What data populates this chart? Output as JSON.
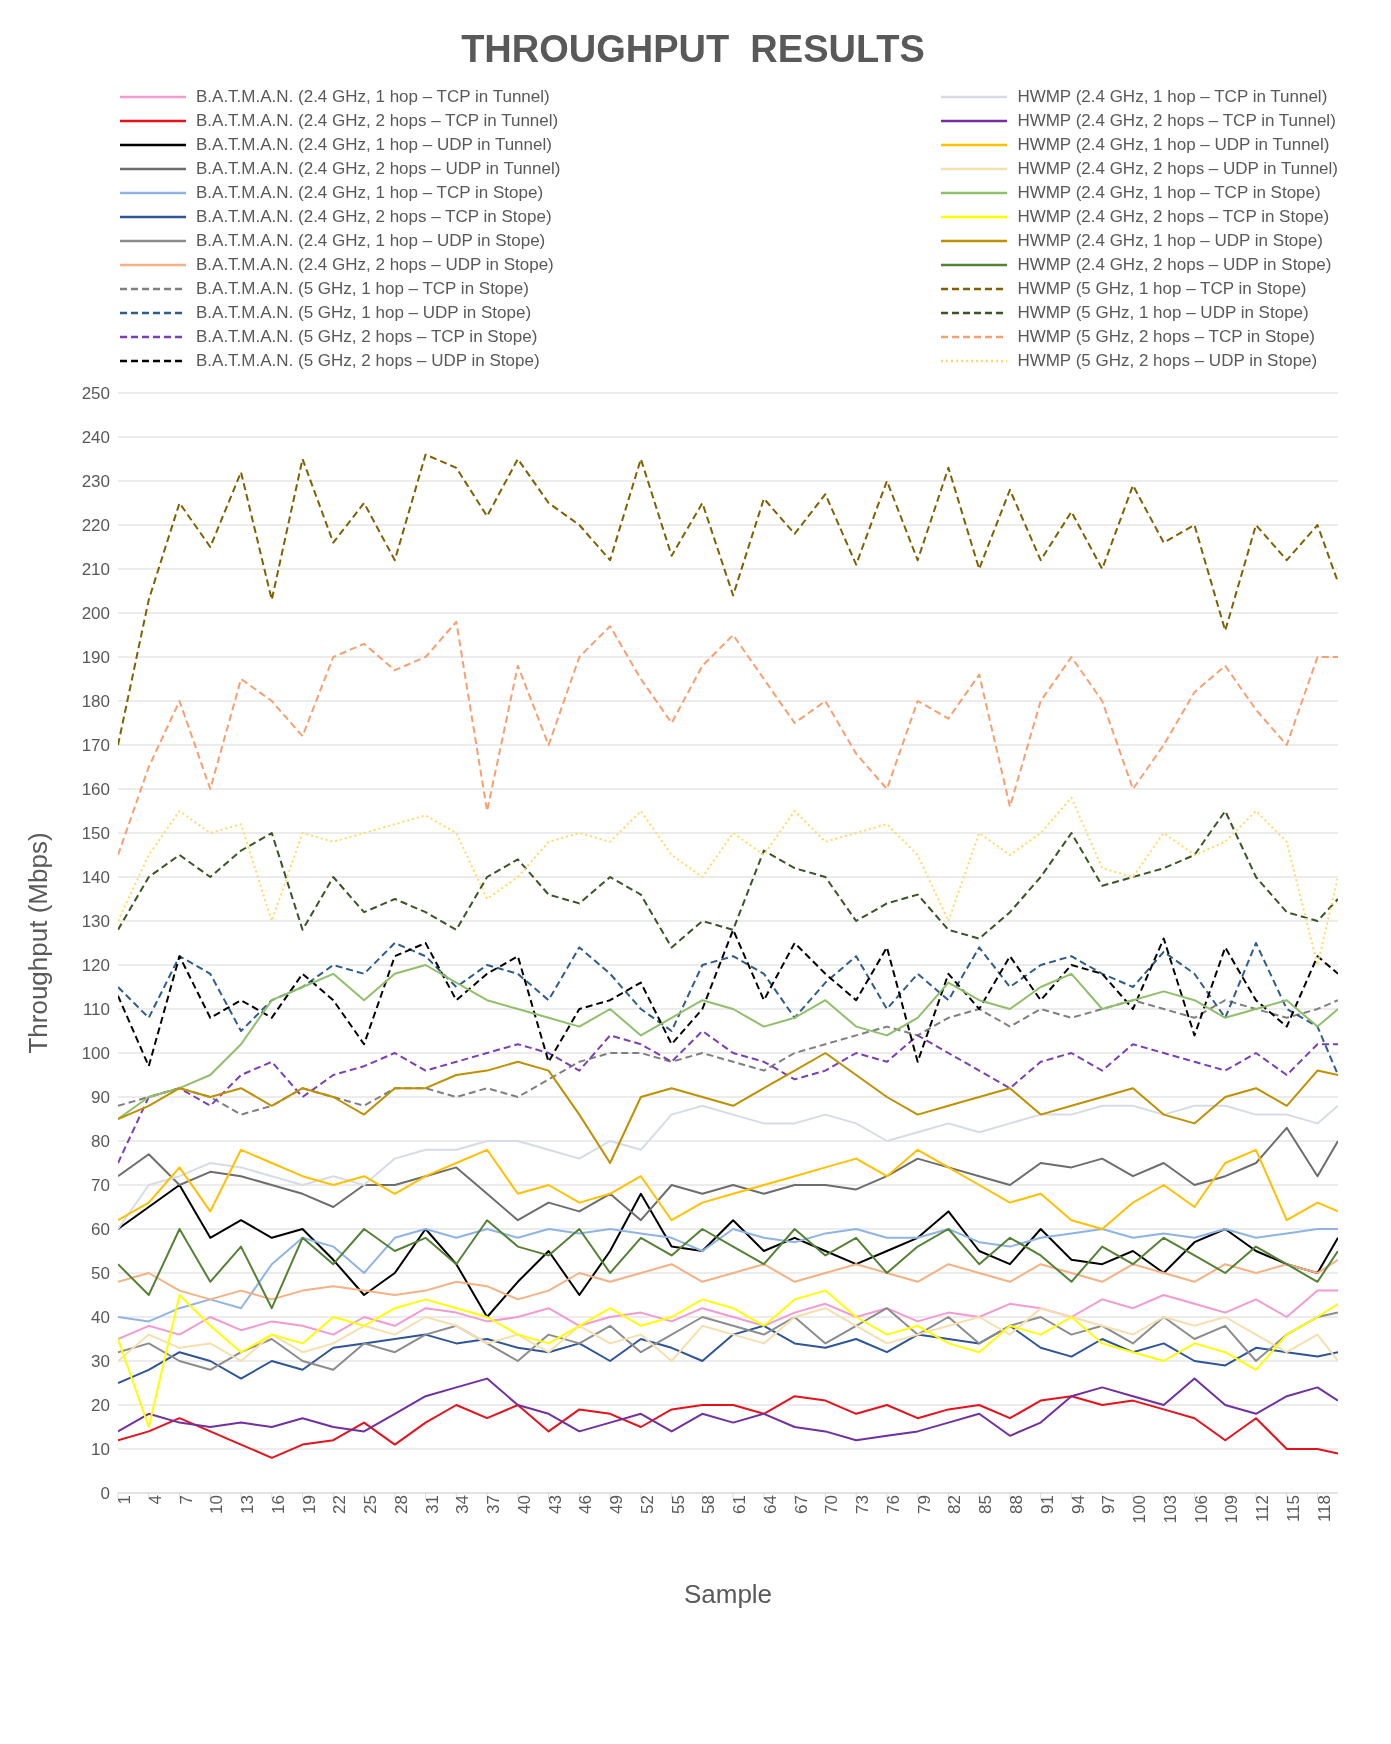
{
  "chart_data": {
    "type": "line",
    "title": "THROUGHPUT  RESULTS",
    "xlabel": "Sample",
    "ylabel": "Throughput (Mbps)",
    "xlim": [
      1,
      120
    ],
    "xticks": [
      1,
      4,
      7,
      10,
      13,
      16,
      19,
      22,
      25,
      28,
      31,
      34,
      37,
      40,
      43,
      46,
      49,
      52,
      55,
      58,
      61,
      64,
      67,
      70,
      73,
      76,
      79,
      82,
      85,
      88,
      91,
      94,
      97,
      100,
      103,
      106,
      109,
      112,
      115,
      118
    ],
    "ylim": [
      0,
      250
    ],
    "yticks": [
      0,
      10,
      20,
      30,
      40,
      50,
      60,
      70,
      80,
      90,
      100,
      110,
      120,
      130,
      140,
      150,
      160,
      170,
      180,
      190,
      200,
      210,
      220,
      230,
      240,
      250
    ],
    "grid": "y",
    "legend": "top",
    "marker": "none",
    "x": [
      1,
      4,
      7,
      10,
      13,
      16,
      19,
      22,
      25,
      28,
      31,
      34,
      37,
      40,
      43,
      46,
      49,
      52,
      55,
      58,
      61,
      64,
      67,
      70,
      73,
      76,
      79,
      82,
      85,
      88,
      91,
      94,
      97,
      100,
      103,
      106,
      109,
      112,
      115,
      118,
      120
    ],
    "series": [
      {
        "name": "B.A.T.M.A.N. (2.4 GHz, 1 hop – TCP in Tunnel)",
        "color": "#f29bd2",
        "line_style": "solid",
        "values": [
          35,
          38,
          36,
          40,
          37,
          39,
          38,
          36,
          40,
          38,
          42,
          41,
          39,
          40,
          42,
          38,
          40,
          41,
          39,
          42,
          40,
          38,
          41,
          43,
          40,
          42,
          39,
          41,
          40,
          43,
          42,
          40,
          44,
          42,
          45,
          43,
          41,
          44,
          40,
          46,
          46
        ]
      },
      {
        "name": "B.A.T.M.A.N. (2.4 GHz, 2 hops – TCP in Tunnel)",
        "color": "#e8111a",
        "line_style": "solid",
        "values": [
          12,
          14,
          17,
          14,
          11,
          8,
          11,
          12,
          16,
          11,
          16,
          20,
          17,
          20,
          14,
          19,
          18,
          15,
          19,
          20,
          20,
          18,
          22,
          21,
          18,
          20,
          17,
          19,
          20,
          17,
          21,
          22,
          20,
          21,
          19,
          17,
          12,
          17,
          10,
          10,
          9
        ]
      },
      {
        "name": "B.A.T.M.A.N. (2.4 GHz, 1 hop – UDP in Tunnel)",
        "color": "#000000",
        "line_style": "solid",
        "values": [
          60,
          65,
          70,
          58,
          62,
          58,
          60,
          53,
          45,
          50,
          60,
          52,
          40,
          48,
          55,
          45,
          55,
          68,
          56,
          55,
          62,
          55,
          58,
          55,
          52,
          55,
          58,
          64,
          55,
          52,
          60,
          53,
          52,
          55,
          50,
          57,
          60,
          55,
          52,
          50,
          58
        ]
      },
      {
        "name": "B.A.T.M.A.N. (2.4 GHz, 2 hops – UDP in Tunnel)",
        "color": "#6d6d6d",
        "line_style": "solid",
        "values": [
          72,
          77,
          70,
          73,
          72,
          70,
          68,
          65,
          70,
          70,
          72,
          74,
          68,
          62,
          66,
          64,
          68,
          62,
          70,
          68,
          70,
          68,
          70,
          70,
          69,
          72,
          76,
          74,
          72,
          70,
          75,
          74,
          76,
          72,
          75,
          70,
          72,
          75,
          83,
          72,
          80
        ]
      },
      {
        "name": "B.A.T.M.A.N. (2.4 GHz, 1 hop – TCP in Stope)",
        "color": "#8fb4e3",
        "line_style": "solid",
        "values": [
          40,
          39,
          42,
          44,
          42,
          52,
          58,
          56,
          50,
          58,
          60,
          58,
          60,
          58,
          60,
          59,
          60,
          59,
          58,
          55,
          60,
          58,
          57,
          59,
          60,
          58,
          58,
          60,
          57,
          56,
          58,
          59,
          60,
          58,
          59,
          58,
          60,
          58,
          59,
          60,
          60
        ]
      },
      {
        "name": "B.A.T.M.A.N. (2.4 GHz, 2 hops – TCP in Stope)",
        "color": "#2e5597",
        "line_style": "solid",
        "values": [
          25,
          28,
          32,
          30,
          26,
          30,
          28,
          33,
          34,
          35,
          36,
          34,
          35,
          33,
          32,
          34,
          30,
          35,
          33,
          30,
          36,
          38,
          34,
          33,
          35,
          32,
          36,
          35,
          34,
          38,
          33,
          31,
          35,
          32,
          34,
          30,
          29,
          33,
          32,
          31,
          32
        ]
      },
      {
        "name": "B.A.T.M.A.N. (2.4 GHz, 1 hop – UDP in Stope)",
        "color": "#8c8c8c",
        "line_style": "solid",
        "values": [
          32,
          34,
          30,
          28,
          32,
          35,
          30,
          28,
          34,
          32,
          36,
          38,
          34,
          30,
          36,
          34,
          38,
          32,
          36,
          40,
          38,
          36,
          40,
          34,
          38,
          42,
          36,
          40,
          34,
          38,
          40,
          36,
          38,
          34,
          40,
          35,
          38,
          30,
          36,
          40,
          41
        ]
      },
      {
        "name": "B.A.T.M.A.N. (2.4 GHz, 2 hops – UDP in Stope)",
        "color": "#f4b183",
        "line_style": "solid",
        "values": [
          48,
          50,
          46,
          44,
          46,
          44,
          46,
          47,
          46,
          45,
          46,
          48,
          47,
          44,
          46,
          50,
          48,
          50,
          52,
          48,
          50,
          52,
          48,
          50,
          52,
          50,
          48,
          52,
          50,
          48,
          52,
          50,
          48,
          52,
          50,
          48,
          52,
          50,
          52,
          50,
          53
        ]
      },
      {
        "name": "B.A.T.M.A.N. (5 GHz, 1 hop – TCP in Stope)",
        "color": "#7f7f7f",
        "line_style": "dashed",
        "values": [
          88,
          90,
          92,
          90,
          86,
          88,
          92,
          90,
          88,
          92,
          92,
          90,
          92,
          90,
          94,
          98,
          100,
          100,
          98,
          100,
          98,
          96,
          100,
          102,
          104,
          106,
          104,
          108,
          110,
          106,
          110,
          108,
          110,
          112,
          110,
          108,
          112,
          110,
          108,
          110,
          112
        ]
      },
      {
        "name": "B.A.T.M.A.N. (5 GHz, 1 hop – UDP in Stope)",
        "color": "#2f5c8a",
        "line_style": "dashed",
        "values": [
          115,
          108,
          122,
          118,
          105,
          112,
          115,
          120,
          118,
          125,
          122,
          115,
          120,
          118,
          112,
          124,
          118,
          110,
          105,
          120,
          122,
          118,
          108,
          116,
          122,
          110,
          118,
          112,
          124,
          115,
          120,
          122,
          118,
          115,
          123,
          118,
          108,
          125,
          110,
          106,
          95
        ]
      },
      {
        "name": "B.A.T.M.A.N. (5 GHz, 2 hops – TCP in Stope)",
        "color": "#7b3fb5",
        "line_style": "dashed",
        "values": [
          75,
          90,
          92,
          88,
          95,
          98,
          90,
          95,
          97,
          100,
          96,
          98,
          100,
          102,
          100,
          96,
          104,
          102,
          98,
          105,
          100,
          98,
          94,
          96,
          100,
          98,
          104,
          100,
          96,
          92,
          98,
          100,
          96,
          102,
          100,
          98,
          96,
          100,
          95,
          102,
          102
        ]
      },
      {
        "name": "B.A.T.M.A.N. (5 GHz, 2 hops – UDP in Stope)",
        "color": "#000000",
        "line_style": "dashed",
        "values": [
          113,
          97,
          122,
          108,
          112,
          108,
          118,
          112,
          102,
          122,
          125,
          112,
          118,
          122,
          98,
          110,
          112,
          116,
          102,
          110,
          128,
          112,
          125,
          118,
          112,
          124,
          98,
          118,
          110,
          122,
          112,
          120,
          118,
          110,
          126,
          104,
          124,
          112,
          106,
          122,
          118
        ]
      },
      {
        "name": "HWMP (2.4 GHz, 1 hop – TCP in Tunnel)",
        "color": "#d6dce5",
        "line_style": "solid",
        "values": [
          60,
          70,
          72,
          75,
          74,
          72,
          70,
          72,
          70,
          76,
          78,
          78,
          80,
          80,
          78,
          76,
          80,
          78,
          86,
          88,
          86,
          84,
          84,
          86,
          84,
          80,
          82,
          84,
          82,
          84,
          86,
          86,
          88,
          88,
          86,
          88,
          88,
          86,
          86,
          84,
          88
        ]
      },
      {
        "name": "HWMP (2.4 GHz, 2 hops – TCP in Tunnel)",
        "color": "#7030a0",
        "line_style": "solid",
        "values": [
          14,
          18,
          16,
          15,
          16,
          15,
          17,
          15,
          14,
          18,
          22,
          24,
          26,
          20,
          18,
          14,
          16,
          18,
          14,
          18,
          16,
          18,
          15,
          14,
          12,
          13,
          14,
          16,
          18,
          13,
          16,
          22,
          24,
          22,
          20,
          26,
          20,
          18,
          22,
          24,
          21
        ]
      },
      {
        "name": "HWMP (2.4 GHz, 1 hop – UDP in Tunnel)",
        "color": "#ffc000",
        "line_style": "solid",
        "values": [
          62,
          66,
          74,
          64,
          78,
          75,
          72,
          70,
          72,
          68,
          72,
          75,
          78,
          68,
          70,
          66,
          68,
          72,
          62,
          66,
          68,
          70,
          72,
          74,
          76,
          72,
          78,
          74,
          70,
          66,
          68,
          62,
          60,
          66,
          70,
          65,
          75,
          78,
          62,
          66,
          64
        ]
      },
      {
        "name": "HWMP (2.4 GHz, 2 hops – UDP in Tunnel)",
        "color": "#f5dfae",
        "line_style": "solid",
        "values": [
          30,
          36,
          33,
          34,
          30,
          36,
          32,
          34,
          38,
          36,
          40,
          38,
          34,
          36,
          32,
          38,
          34,
          36,
          30,
          38,
          36,
          34,
          40,
          42,
          38,
          34,
          36,
          38,
          40,
          36,
          42,
          40,
          38,
          36,
          40,
          38,
          40,
          36,
          32,
          36,
          30
        ]
      },
      {
        "name": "HWMP (2.4 GHz, 1 hop – TCP in Stope)",
        "color": "#8fbf6a",
        "line_style": "solid",
        "values": [
          85,
          90,
          92,
          95,
          102,
          112,
          115,
          118,
          112,
          118,
          120,
          116,
          112,
          110,
          108,
          106,
          110,
          104,
          108,
          112,
          110,
          106,
          108,
          112,
          106,
          104,
          108,
          116,
          112,
          110,
          115,
          118,
          110,
          112,
          114,
          112,
          108,
          110,
          112,
          106,
          110
        ]
      },
      {
        "name": "HWMP (2.4 GHz, 2 hops – TCP in Stope)",
        "color": "#ffff00",
        "line_style": "solid",
        "values": [
          35,
          15,
          45,
          38,
          32,
          36,
          34,
          40,
          38,
          42,
          44,
          42,
          40,
          36,
          34,
          38,
          42,
          38,
          40,
          44,
          42,
          38,
          44,
          46,
          40,
          36,
          38,
          34,
          32,
          38,
          36,
          40,
          34,
          32,
          30,
          34,
          32,
          28,
          36,
          40,
          43
        ]
      },
      {
        "name": "HWMP (2.4 GHz, 1 hop – UDP in Stope)",
        "color": "#bf9000",
        "line_style": "solid",
        "values": [
          85,
          88,
          92,
          90,
          92,
          88,
          92,
          90,
          86,
          92,
          92,
          95,
          96,
          98,
          96,
          86,
          75,
          90,
          92,
          90,
          88,
          92,
          96,
          100,
          95,
          90,
          86,
          88,
          90,
          92,
          86,
          88,
          90,
          92,
          86,
          84,
          90,
          92,
          88,
          96,
          95
        ]
      },
      {
        "name": "HWMP (2.4 GHz, 2 hops – UDP in Stope)",
        "color": "#548235",
        "line_style": "solid",
        "values": [
          52,
          45,
          60,
          48,
          56,
          42,
          58,
          52,
          60,
          55,
          58,
          52,
          62,
          56,
          54,
          60,
          50,
          58,
          54,
          60,
          56,
          52,
          60,
          54,
          58,
          50,
          56,
          60,
          52,
          58,
          54,
          48,
          56,
          52,
          58,
          54,
          50,
          56,
          52,
          48,
          55
        ]
      },
      {
        "name": "HWMP (5 GHz, 1 hop – TCP in Stope)",
        "color": "#7f6000",
        "line_style": "dashed",
        "values": [
          170,
          203,
          225,
          215,
          232,
          203,
          235,
          216,
          225,
          212,
          236,
          233,
          222,
          235,
          225,
          220,
          212,
          235,
          213,
          225,
          204,
          226,
          218,
          227,
          211,
          230,
          212,
          233,
          210,
          228,
          212,
          223,
          210,
          229,
          216,
          220,
          196,
          220,
          212,
          220,
          207
        ]
      },
      {
        "name": "HWMP (5 GHz, 1 hop – UDP in Stope)",
        "color": "#375623",
        "line_style": "dashed",
        "values": [
          128,
          140,
          145,
          140,
          146,
          150,
          128,
          140,
          132,
          135,
          132,
          128,
          140,
          144,
          136,
          134,
          140,
          136,
          124,
          130,
          128,
          146,
          142,
          140,
          130,
          134,
          136,
          128,
          126,
          132,
          140,
          150,
          138,
          140,
          142,
          145,
          155,
          140,
          132,
          130,
          135
        ]
      },
      {
        "name": "HWMP (5 GHz, 2 hops – TCP in Stope)",
        "color": "#f4a070",
        "line_style": "dashed",
        "values": [
          145,
          165,
          180,
          160,
          185,
          180,
          172,
          190,
          193,
          187,
          190,
          198,
          155,
          188,
          170,
          190,
          197,
          185,
          175,
          188,
          195,
          185,
          175,
          180,
          168,
          160,
          180,
          176,
          186,
          156,
          180,
          190,
          180,
          160,
          170,
          182,
          188,
          178,
          170,
          190,
          190
        ]
      },
      {
        "name": "HWMP (5 GHz, 2 hops – UDP in Stope)",
        "color": "#ffd966",
        "line_style": "dotted",
        "values": [
          130,
          145,
          155,
          150,
          152,
          130,
          150,
          148,
          150,
          152,
          154,
          150,
          135,
          140,
          148,
          150,
          148,
          155,
          145,
          140,
          150,
          145,
          155,
          148,
          150,
          152,
          145,
          130,
          150,
          145,
          150,
          158,
          142,
          140,
          150,
          145,
          148,
          155,
          148,
          120,
          140
        ]
      }
    ]
  }
}
